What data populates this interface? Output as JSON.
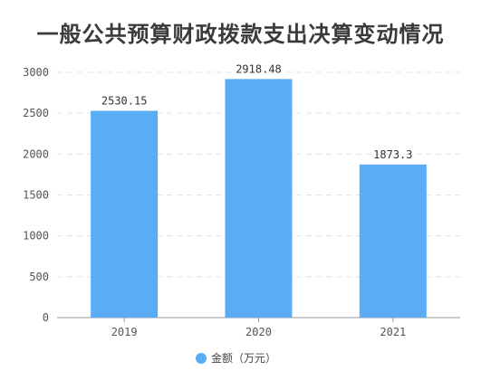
{
  "chart_data": {
    "type": "bar",
    "title": "一般公共预算财政拨款支出决算变动情况",
    "categories": [
      "2019",
      "2020",
      "2021"
    ],
    "series": [
      {
        "name": "金额（万元）",
        "values": [
          2530.15,
          2918.48,
          1873.3
        ],
        "value_labels": [
          "2530.15",
          "2918.48",
          "1873.3"
        ]
      }
    ],
    "ylim": [
      0,
      3000
    ],
    "yticks": [
      0,
      500,
      1000,
      1500,
      2000,
      2500,
      3000
    ],
    "grid": true,
    "legend_position": "bottom",
    "bar_color": "#5aacf5"
  }
}
